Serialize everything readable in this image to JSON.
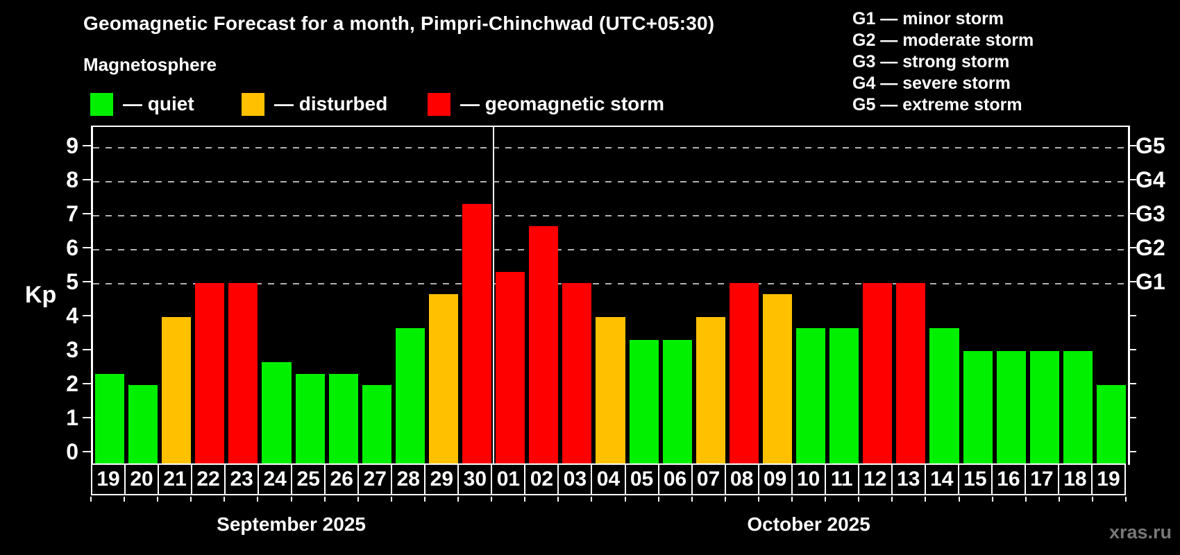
{
  "title": "Geomagnetic Forecast for a month, Pimpri-Chinchwad (UTC+05:30)",
  "subtitle": "Magnetosphere",
  "legend": {
    "items": [
      {
        "name": "quiet",
        "label": "— quiet",
        "color": "#00f000"
      },
      {
        "name": "disturbed",
        "label": "— disturbed",
        "color": "#ffc000"
      },
      {
        "name": "geomagnetic-storm",
        "label": "— geomagnetic storm",
        "color": "#ff0000"
      }
    ]
  },
  "g_scale_legend": [
    "G1 — minor storm",
    "G2 — moderate storm",
    "G3 — strong storm",
    "G4 — severe storm",
    "G5 — extreme storm"
  ],
  "watermark": "xras.ru",
  "chart_data": {
    "type": "bar",
    "ylabel": "Kp",
    "ylim": [
      0,
      9.6
    ],
    "yticks": [
      0,
      1,
      2,
      3,
      4,
      5,
      6,
      7,
      8,
      9
    ],
    "gridlines_at": [
      5,
      6,
      7,
      8,
      9
    ],
    "grid": "dashed",
    "right_axis_labels": [
      {
        "kp": 5,
        "label": "G1"
      },
      {
        "kp": 6,
        "label": "G2"
      },
      {
        "kp": 7,
        "label": "G3"
      },
      {
        "kp": 8,
        "label": "G4"
      },
      {
        "kp": 9,
        "label": "G5"
      }
    ],
    "months": [
      {
        "label": "September 2025",
        "days": 12
      },
      {
        "label": "October 2025",
        "days": 19
      }
    ],
    "categories": [
      "19",
      "20",
      "21",
      "22",
      "23",
      "24",
      "25",
      "26",
      "27",
      "28",
      "29",
      "30",
      "01",
      "02",
      "03",
      "04",
      "05",
      "06",
      "07",
      "08",
      "09",
      "10",
      "11",
      "12",
      "13",
      "14",
      "15",
      "16",
      "17",
      "18",
      "19"
    ],
    "values": [
      2.33,
      2.0,
      4.0,
      5.0,
      5.0,
      2.67,
      2.33,
      2.33,
      2.0,
      3.67,
      4.67,
      7.33,
      5.33,
      6.67,
      5.0,
      4.0,
      3.33,
      3.33,
      4.0,
      5.0,
      4.67,
      3.67,
      3.67,
      5.0,
      5.0,
      3.67,
      3.0,
      3.0,
      3.0,
      3.0,
      2.0
    ],
    "statuses": [
      "quiet",
      "quiet",
      "disturbed",
      "storm",
      "storm",
      "quiet",
      "quiet",
      "quiet",
      "quiet",
      "quiet",
      "disturbed",
      "storm",
      "storm",
      "storm",
      "storm",
      "disturbed",
      "quiet",
      "quiet",
      "disturbed",
      "storm",
      "disturbed",
      "quiet",
      "quiet",
      "storm",
      "storm",
      "quiet",
      "quiet",
      "quiet",
      "quiet",
      "quiet",
      "quiet"
    ],
    "colors": {
      "quiet": "#00f000",
      "disturbed": "#ffc000",
      "storm": "#ff0000"
    }
  }
}
